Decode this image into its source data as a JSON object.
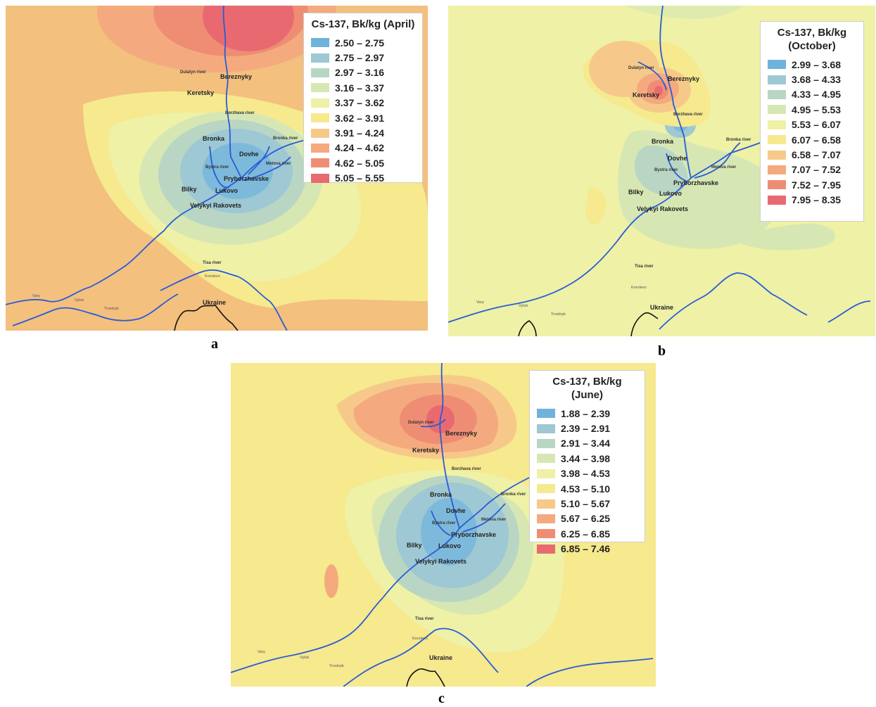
{
  "panels": [
    {
      "id": "a",
      "label": "a",
      "legend": {
        "title": "Cs-137, Bk/kg (April)",
        "classes": [
          {
            "range": "2.50 – 2.75",
            "color": "#6fb3dc"
          },
          {
            "range": "2.75 – 2.97",
            "color": "#9ec8d3"
          },
          {
            "range": "2.97 – 3.16",
            "color": "#b8d6c3"
          },
          {
            "range": "3.16 – 3.37",
            "color": "#d6e7b4"
          },
          {
            "range": "3.37 – 3.62",
            "color": "#eef1a6"
          },
          {
            "range": "3.62 – 3.91",
            "color": "#f6e98e"
          },
          {
            "range": "3.91 – 4.24",
            "color": "#f6c98a"
          },
          {
            "range": "4.24 – 4.62",
            "color": "#f4aa7e"
          },
          {
            "range": "4.62 – 5.05",
            "color": "#ef8d74"
          },
          {
            "range": "5.05 – 5.55",
            "color": "#e86a70"
          }
        ]
      }
    },
    {
      "id": "b",
      "label": "b",
      "legend": {
        "title": "Cs-137, Bk/kg (October)",
        "title_line1": "Cs-137, Bk/kg",
        "title_line2": "(October)",
        "classes": [
          {
            "range": "2.99 – 3.68",
            "color": "#6fb3dc"
          },
          {
            "range": "3.68 – 4.33",
            "color": "#9ec8d3"
          },
          {
            "range": "4.33 – 4.95",
            "color": "#b8d6c3"
          },
          {
            "range": "4.95 – 5.53",
            "color": "#d6e7b4"
          },
          {
            "range": "5.53 – 6.07",
            "color": "#eef1a6"
          },
          {
            "range": "6.07 – 6.58",
            "color": "#f6e98e"
          },
          {
            "range": "6.58 – 7.07",
            "color": "#f6c98a"
          },
          {
            "range": "7.07 – 7.52",
            "color": "#f4aa7e"
          },
          {
            "range": "7.52 – 7.95",
            "color": "#ef8d74"
          },
          {
            "range": "7.95 – 8.35",
            "color": "#e86a70"
          }
        ]
      }
    },
    {
      "id": "c",
      "label": "c",
      "legend": {
        "title": "Cs-137, Bk/kg (June)",
        "classes": [
          {
            "range": "1.88 – 2.39",
            "color": "#6fb3dc"
          },
          {
            "range": "2.39 – 2.91",
            "color": "#9ec8d3"
          },
          {
            "range": "2.91 – 3.44",
            "color": "#b8d6c3"
          },
          {
            "range": "3.44 – 3.98",
            "color": "#d6e7b4"
          },
          {
            "range": "3.98 – 4.53",
            "color": "#eef1a6"
          },
          {
            "range": "4.53 – 5.10",
            "color": "#f6e98e"
          },
          {
            "range": "5.10 – 5.67",
            "color": "#f6c98a"
          },
          {
            "range": "5.67 – 6.25",
            "color": "#f4aa7e"
          },
          {
            "range": "6.25 – 6.85",
            "color": "#ef8d74"
          },
          {
            "range": "6.85 – 7.46",
            "color": "#e86a70"
          }
        ]
      }
    }
  ],
  "places": {
    "bereznyky": "Bereznyky",
    "keretsky": "Keretsky",
    "dulatyn_river": "Dulatyn river",
    "borzhava_river": "Borzhava river",
    "bronka": "Bronka",
    "bronka_river": "Bronka river",
    "dovhe": "Dovhe",
    "bystra_river": "Bystra river",
    "metova_river": "Metova river",
    "pryborzhavske": "Pryborzhavske",
    "bilky": "Bilky",
    "lukovo": "Lukovo",
    "velykyi_rakovets": "Velykyi Rakovets",
    "tisa_river": "Tisa river",
    "korolevo": "Korolevo",
    "ukraine": "Ukraine",
    "vary": "Vary",
    "vylok": "Vylok",
    "trostnyk": "Trostnyk"
  },
  "colors": {
    "river": "#2a5bd7",
    "border": "#111111"
  }
}
